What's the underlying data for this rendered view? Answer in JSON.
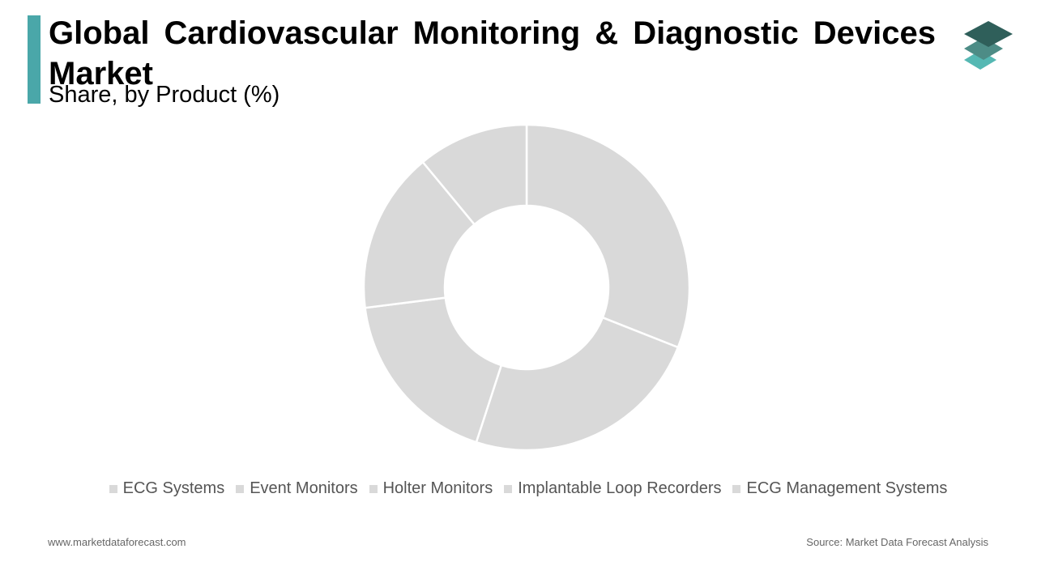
{
  "header": {
    "title": " Global Cardiovascular Monitoring & Diagnostic Devices Market",
    "subtitle": "Share, by Product (%)",
    "accent_color": "#4aa7a9"
  },
  "logo": {
    "icon": "stacked-layers-icon",
    "colors": [
      "#2f5f5a",
      "#4d8c86",
      "#55b8b3"
    ]
  },
  "chart_data": {
    "type": "pie",
    "donut": true,
    "categories": [
      "ECG Systems",
      "Event Monitors",
      "Holter Monitors",
      "Implantable Loop Recorders",
      "ECG Management Systems"
    ],
    "values": [
      31,
      24,
      18,
      16,
      11
    ],
    "slice_color": "#d9d9d9",
    "legend": "bottom"
  },
  "footer": {
    "website": "www.marketdataforecast.com",
    "source": "Source: Market Data Forecast Analysis"
  }
}
